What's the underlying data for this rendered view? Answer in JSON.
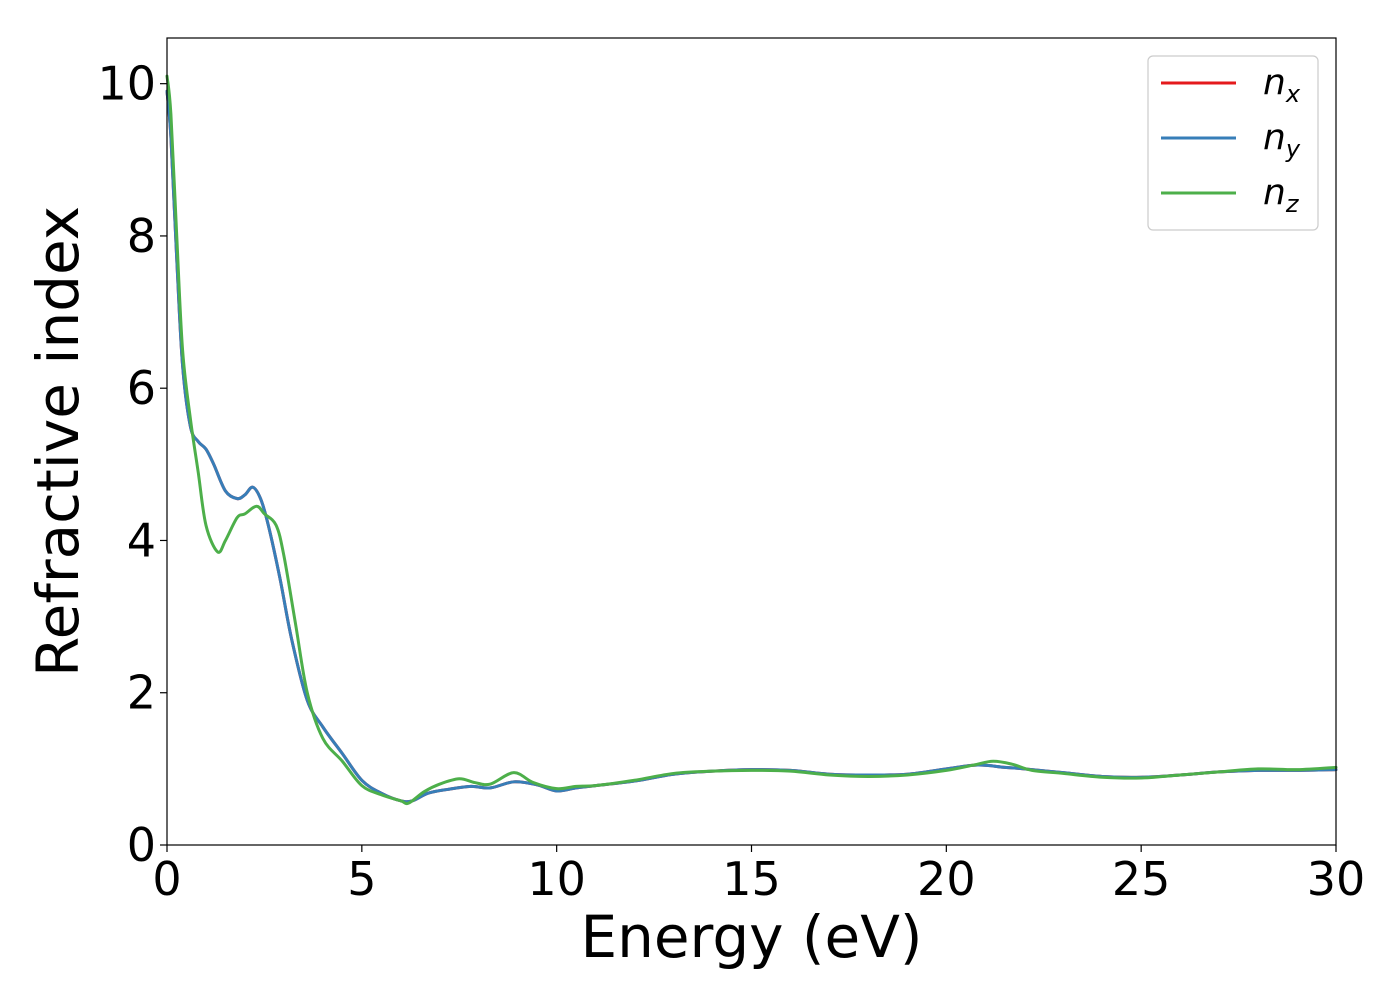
{
  "chart_data": {
    "type": "line",
    "xlabel": "Energy (eV)",
    "ylabel": "Refractive index",
    "xlim": [
      0,
      30
    ],
    "ylim": [
      0,
      10.6
    ],
    "xticks": [
      0,
      5,
      10,
      15,
      20,
      25,
      30
    ],
    "yticks": [
      0,
      2,
      4,
      6,
      8,
      10
    ],
    "xtick_labels": [
      "0",
      "5",
      "10",
      "15",
      "20",
      "25",
      "30"
    ],
    "ytick_labels": [
      "0",
      "2",
      "4",
      "6",
      "8",
      "10"
    ],
    "grid": false,
    "legend_position": "top-right",
    "series": [
      {
        "name": "n_x",
        "label_main": "n",
        "label_sub": "x",
        "color": "#e41a1c",
        "x": [
          0,
          0.1,
          0.25,
          0.4,
          0.6,
          0.8,
          1.0,
          1.2,
          1.5,
          1.8,
          2.0,
          2.2,
          2.4,
          2.6,
          2.9,
          3.2,
          3.6,
          4.0,
          4.5,
          5.0,
          5.5,
          6.0,
          6.3,
          6.7,
          7.2,
          7.8,
          8.3,
          8.9,
          9.5,
          10.0,
          10.5,
          11.0,
          12.0,
          13.0,
          14.0,
          15.0,
          16.0,
          17.0,
          18.0,
          19.0,
          20.0,
          20.8,
          21.5,
          22.0,
          23.0,
          24.0,
          25.0,
          26.0,
          27.0,
          28.0,
          29.0,
          30.0
        ],
        "y": [
          9.9,
          9.3,
          7.7,
          6.3,
          5.5,
          5.3,
          5.2,
          5.0,
          4.65,
          4.55,
          4.6,
          4.7,
          4.55,
          4.2,
          3.5,
          2.7,
          1.9,
          1.55,
          1.2,
          0.85,
          0.68,
          0.58,
          0.58,
          0.68,
          0.73,
          0.77,
          0.75,
          0.83,
          0.79,
          0.71,
          0.75,
          0.78,
          0.84,
          0.93,
          0.97,
          0.99,
          0.98,
          0.93,
          0.92,
          0.93,
          1.0,
          1.05,
          1.02,
          1.0,
          0.95,
          0.9,
          0.89,
          0.92,
          0.96,
          0.98,
          0.98,
          0.99
        ]
      },
      {
        "name": "n_y",
        "label_main": "n",
        "label_sub": "y",
        "color": "#377eb8",
        "x": [
          0,
          0.1,
          0.25,
          0.4,
          0.6,
          0.8,
          1.0,
          1.2,
          1.5,
          1.8,
          2.0,
          2.2,
          2.4,
          2.6,
          2.9,
          3.2,
          3.6,
          4.0,
          4.5,
          5.0,
          5.5,
          6.0,
          6.3,
          6.7,
          7.2,
          7.8,
          8.3,
          8.9,
          9.5,
          10.0,
          10.5,
          11.0,
          12.0,
          13.0,
          14.0,
          15.0,
          16.0,
          17.0,
          18.0,
          19.0,
          20.0,
          20.8,
          21.5,
          22.0,
          23.0,
          24.0,
          25.0,
          26.0,
          27.0,
          28.0,
          29.0,
          30.0
        ],
        "y": [
          9.9,
          9.3,
          7.7,
          6.3,
          5.5,
          5.3,
          5.2,
          5.0,
          4.65,
          4.55,
          4.6,
          4.7,
          4.55,
          4.2,
          3.5,
          2.7,
          1.9,
          1.55,
          1.2,
          0.85,
          0.68,
          0.58,
          0.58,
          0.68,
          0.73,
          0.77,
          0.75,
          0.83,
          0.79,
          0.71,
          0.75,
          0.78,
          0.84,
          0.93,
          0.97,
          0.99,
          0.98,
          0.93,
          0.92,
          0.93,
          1.0,
          1.05,
          1.02,
          1.0,
          0.95,
          0.9,
          0.89,
          0.92,
          0.96,
          0.98,
          0.98,
          0.99
        ]
      },
      {
        "name": "n_z",
        "label_main": "n",
        "label_sub": "z",
        "color": "#4daf4a",
        "x": [
          0,
          0.1,
          0.25,
          0.4,
          0.6,
          0.8,
          1.0,
          1.3,
          1.5,
          1.8,
          2.0,
          2.3,
          2.5,
          2.8,
          3.0,
          3.3,
          3.6,
          4.0,
          4.5,
          5.0,
          5.5,
          6.0,
          6.2,
          6.6,
          7.0,
          7.5,
          7.9,
          8.3,
          8.9,
          9.4,
          10.0,
          10.5,
          11.0,
          12.0,
          13.0,
          14.0,
          15.0,
          16.0,
          17.0,
          18.0,
          19.0,
          20.0,
          20.7,
          21.2,
          21.7,
          22.2,
          23.0,
          24.0,
          25.0,
          26.0,
          27.0,
          28.0,
          29.0,
          30.0
        ],
        "y": [
          10.1,
          9.6,
          8.0,
          6.5,
          5.6,
          4.9,
          4.2,
          3.85,
          4.0,
          4.3,
          4.35,
          4.45,
          4.35,
          4.2,
          3.8,
          2.9,
          2.0,
          1.4,
          1.1,
          0.78,
          0.66,
          0.58,
          0.55,
          0.7,
          0.8,
          0.87,
          0.82,
          0.8,
          0.95,
          0.82,
          0.74,
          0.77,
          0.78,
          0.85,
          0.94,
          0.97,
          0.98,
          0.97,
          0.92,
          0.9,
          0.92,
          0.98,
          1.05,
          1.1,
          1.06,
          0.98,
          0.94,
          0.89,
          0.88,
          0.92,
          0.96,
          1.0,
          0.99,
          1.02
        ]
      }
    ]
  }
}
